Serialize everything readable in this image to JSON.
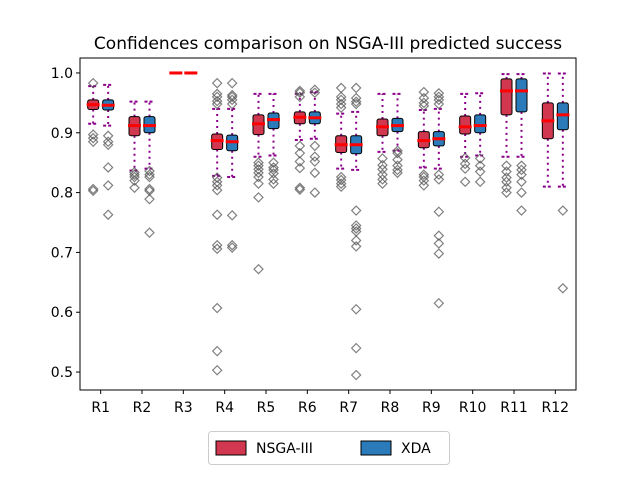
{
  "chart_data": {
    "type": "box",
    "title": "Confidences comparison on NSGA-III predicted success",
    "xlabel": "",
    "ylabel": "",
    "ylim": [
      0.47,
      1.025
    ],
    "yticks": [
      "0.5",
      "0.6",
      "0.7",
      "0.8",
      "0.9",
      "1.0"
    ],
    "categories": [
      "R1",
      "R2",
      "R3",
      "R4",
      "R5",
      "R6",
      "R7",
      "R8",
      "R9",
      "R10",
      "R11",
      "R12"
    ],
    "legend": {
      "placement": "bottom-center",
      "columns": 2
    },
    "colors": {
      "median": "#ff0000",
      "whisker": "#8b008b",
      "outlier": "#555555",
      "box_edge": "#000000"
    },
    "series": [
      {
        "name": "NSGA-III",
        "color": "#d1384f",
        "boxes": [
          {
            "whislo": 0.915,
            "q1": 0.939,
            "med": 0.947,
            "q3": 0.955,
            "whishi": 0.978,
            "fliers": [
              0.983,
              0.897,
              0.891,
              0.885,
              0.806,
              0.803
            ]
          },
          {
            "whislo": 0.837,
            "q1": 0.895,
            "med": 0.912,
            "q3": 0.927,
            "whishi": 0.952,
            "fliers": [
              0.834,
              0.83,
              0.826,
              0.82,
              0.808
            ]
          },
          {
            "whislo": 0.999,
            "q1": 0.999,
            "med": 1.0,
            "q3": 1.0,
            "whishi": 1.0,
            "fliers": []
          },
          {
            "whislo": 0.828,
            "q1": 0.872,
            "med": 0.887,
            "q3": 0.898,
            "whishi": 0.94,
            "fliers": [
              0.983,
              0.965,
              0.96,
              0.953,
              0.948,
              0.825,
              0.818,
              0.812,
              0.804,
              0.763,
              0.712,
              0.706,
              0.607,
              0.535,
              0.503
            ]
          },
          {
            "whislo": 0.86,
            "q1": 0.897,
            "med": 0.915,
            "q3": 0.93,
            "whishi": 0.965,
            "fliers": [
              0.85,
              0.845,
              0.839,
              0.833,
              0.826,
              0.815,
              0.792,
              0.672
            ]
          },
          {
            "whislo": 0.888,
            "q1": 0.915,
            "med": 0.926,
            "q3": 0.935,
            "whishi": 0.965,
            "fliers": [
              0.97,
              0.967,
              0.96,
              0.878,
              0.866,
              0.852,
              0.841,
              0.808,
              0.805
            ]
          },
          {
            "whislo": 0.84,
            "q1": 0.867,
            "med": 0.88,
            "q3": 0.895,
            "whishi": 0.932,
            "fliers": [
              0.975,
              0.96,
              0.955,
              0.948,
              0.942,
              0.826,
              0.821,
              0.815,
              0.81
            ]
          },
          {
            "whislo": 0.868,
            "q1": 0.895,
            "med": 0.91,
            "q3": 0.923,
            "whishi": 0.965,
            "fliers": [
              0.857,
              0.846,
              0.839,
              0.83,
              0.822,
              0.815
            ]
          },
          {
            "whislo": 0.842,
            "q1": 0.875,
            "med": 0.887,
            "q3": 0.902,
            "whishi": 0.938,
            "fliers": [
              0.968,
              0.958,
              0.95,
              0.945,
              0.83,
              0.826,
              0.82,
              0.812
            ]
          },
          {
            "whislo": 0.86,
            "q1": 0.898,
            "med": 0.91,
            "q3": 0.928,
            "whishi": 0.965,
            "fliers": [
              0.858,
              0.848,
              0.84,
              0.818
            ]
          },
          {
            "whislo": 0.86,
            "q1": 0.93,
            "med": 0.97,
            "q3": 0.99,
            "whishi": 0.998,
            "fliers": [
              0.845,
              0.835,
              0.825,
              0.818,
              0.808,
              0.8
            ]
          },
          {
            "whislo": 0.81,
            "q1": 0.89,
            "med": 0.92,
            "q3": 0.95,
            "whishi": 0.999,
            "fliers": []
          }
        ]
      },
      {
        "name": "XDA",
        "color": "#2b7bba",
        "boxes": [
          {
            "whislo": 0.912,
            "q1": 0.938,
            "med": 0.946,
            "q3": 0.955,
            "whishi": 0.98,
            "fliers": [
              0.895,
              0.885,
              0.88,
              0.842,
              0.812,
              0.763
            ]
          },
          {
            "whislo": 0.84,
            "q1": 0.9,
            "med": 0.912,
            "q3": 0.927,
            "whishi": 0.952,
            "fliers": [
              0.836,
              0.83,
              0.826,
              0.806,
              0.803,
              0.789,
              0.733
            ]
          },
          {
            "whislo": 0.999,
            "q1": 0.999,
            "med": 1.0,
            "q3": 1.0,
            "whishi": 1.0,
            "fliers": []
          },
          {
            "whislo": 0.826,
            "q1": 0.87,
            "med": 0.885,
            "q3": 0.896,
            "whishi": 0.94,
            "fliers": [
              0.983,
              0.963,
              0.96,
              0.955,
              0.948,
              0.762,
              0.712,
              0.708
            ]
          },
          {
            "whislo": 0.862,
            "q1": 0.907,
            "med": 0.922,
            "q3": 0.933,
            "whishi": 0.965,
            "fliers": [
              0.85,
              0.842,
              0.838,
              0.832,
              0.822,
              0.815
            ]
          },
          {
            "whislo": 0.89,
            "q1": 0.915,
            "med": 0.925,
            "q3": 0.935,
            "whishi": 0.968,
            "fliers": [
              0.972,
              0.967,
              0.878,
              0.86,
              0.852,
              0.833,
              0.8
            ]
          },
          {
            "whislo": 0.838,
            "q1": 0.865,
            "med": 0.88,
            "q3": 0.895,
            "whishi": 0.935,
            "fliers": [
              0.975,
              0.958,
              0.952,
              0.948,
              0.77,
              0.745,
              0.74,
              0.735,
              0.72,
              0.71,
              0.605,
              0.54,
              0.495
            ]
          },
          {
            "whislo": 0.87,
            "q1": 0.902,
            "med": 0.912,
            "q3": 0.924,
            "whishi": 0.965,
            "fliers": [
              0.87,
              0.866,
              0.855,
              0.845,
              0.838,
              0.833
            ]
          },
          {
            "whislo": 0.84,
            "q1": 0.878,
            "med": 0.89,
            "q3": 0.902,
            "whishi": 0.94,
            "fliers": [
              0.966,
              0.96,
              0.955,
              0.948,
              0.83,
              0.822,
              0.768,
              0.728,
              0.715,
              0.698,
              0.615
            ]
          },
          {
            "whislo": 0.862,
            "q1": 0.9,
            "med": 0.912,
            "q3": 0.93,
            "whishi": 0.966,
            "fliers": [
              0.857,
              0.845,
              0.835,
              0.818
            ]
          },
          {
            "whislo": 0.86,
            "q1": 0.935,
            "med": 0.97,
            "q3": 0.99,
            "whishi": 0.998,
            "fliers": [
              0.845,
              0.838,
              0.83,
              0.818,
              0.8,
              0.77
            ]
          },
          {
            "whislo": 0.81,
            "q1": 0.905,
            "med": 0.93,
            "q3": 0.95,
            "whishi": 0.999,
            "fliers": [
              0.77,
              0.64
            ]
          }
        ]
      }
    ]
  }
}
